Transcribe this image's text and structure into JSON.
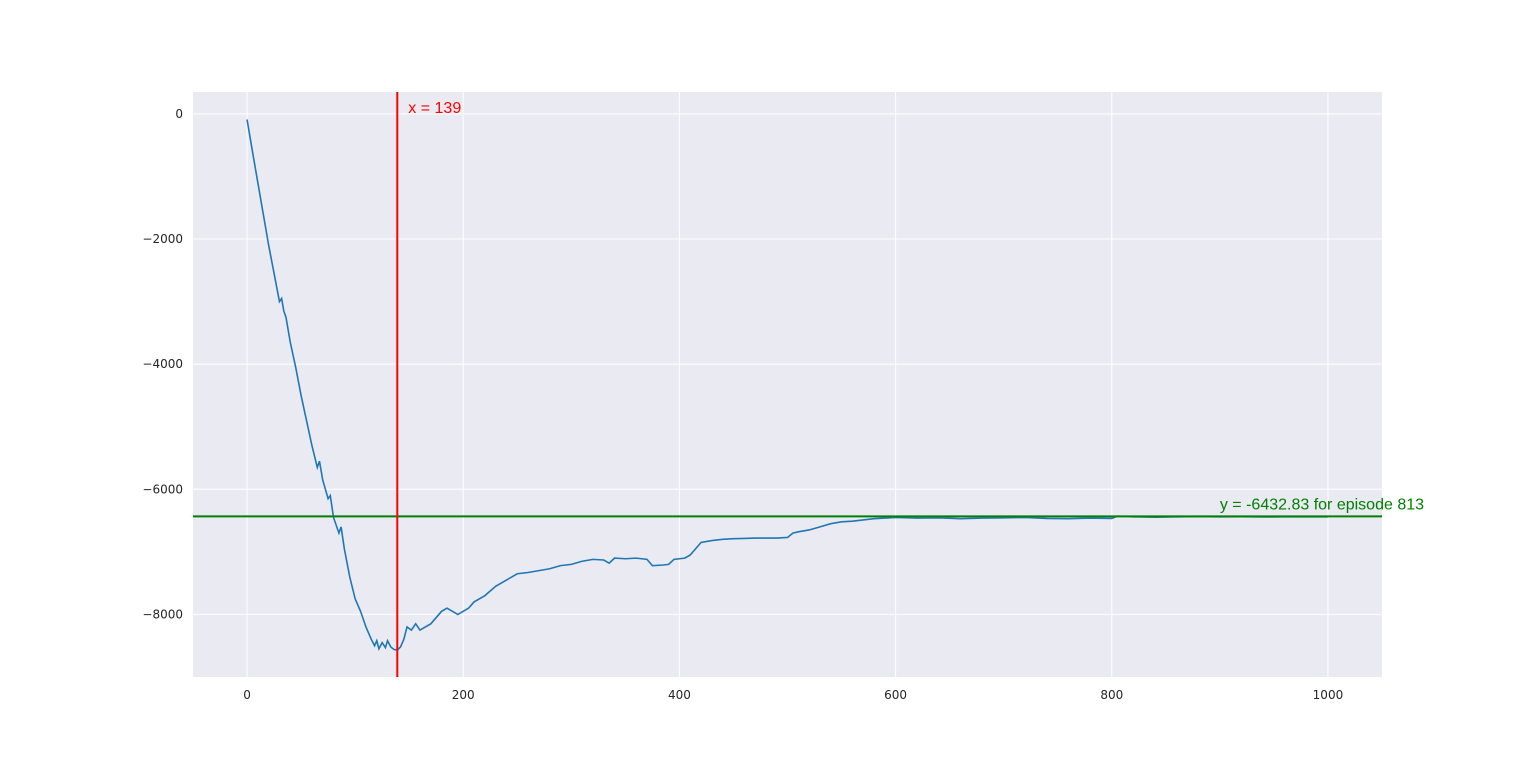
{
  "chart_data": {
    "type": "line",
    "title": "",
    "xlabel": "",
    "ylabel": "",
    "xlim": [
      -50,
      1050
    ],
    "ylim": [
      -9000,
      350
    ],
    "xticks": [
      0,
      200,
      400,
      600,
      800,
      1000
    ],
    "yticks": [
      0,
      -2000,
      -4000,
      -6000,
      -8000
    ],
    "xtick_labels": [
      "0",
      "200",
      "400",
      "600",
      "800",
      "1000"
    ],
    "ytick_labels": [
      "0",
      "−2000",
      "−4000",
      "−6000",
      "−8000"
    ],
    "grid": true,
    "background": "#eaeaf2",
    "series": [
      {
        "color": "#1f77b4",
        "points": [
          [
            0,
            -90
          ],
          [
            5,
            -600
          ],
          [
            10,
            -1100
          ],
          [
            15,
            -1600
          ],
          [
            20,
            -2100
          ],
          [
            25,
            -2550
          ],
          [
            30,
            -3000
          ],
          [
            32,
            -2950
          ],
          [
            34,
            -3150
          ],
          [
            36,
            -3250
          ],
          [
            40,
            -3650
          ],
          [
            45,
            -4050
          ],
          [
            50,
            -4500
          ],
          [
            55,
            -4900
          ],
          [
            60,
            -5300
          ],
          [
            65,
            -5650
          ],
          [
            67,
            -5550
          ],
          [
            70,
            -5850
          ],
          [
            75,
            -6150
          ],
          [
            77,
            -6100
          ],
          [
            80,
            -6450
          ],
          [
            85,
            -6700
          ],
          [
            87,
            -6600
          ],
          [
            90,
            -6950
          ],
          [
            95,
            -7400
          ],
          [
            100,
            -7750
          ],
          [
            105,
            -7950
          ],
          [
            110,
            -8200
          ],
          [
            115,
            -8400
          ],
          [
            118,
            -8500
          ],
          [
            120,
            -8420
          ],
          [
            122,
            -8550
          ],
          [
            125,
            -8450
          ],
          [
            128,
            -8530
          ],
          [
            130,
            -8420
          ],
          [
            133,
            -8520
          ],
          [
            136,
            -8560
          ],
          [
            139,
            -8570
          ],
          [
            142,
            -8520
          ],
          [
            145,
            -8400
          ],
          [
            148,
            -8200
          ],
          [
            152,
            -8250
          ],
          [
            156,
            -8150
          ],
          [
            160,
            -8250
          ],
          [
            165,
            -8200
          ],
          [
            170,
            -8150
          ],
          [
            175,
            -8050
          ],
          [
            180,
            -7950
          ],
          [
            185,
            -7900
          ],
          [
            190,
            -7950
          ],
          [
            195,
            -8000
          ],
          [
            200,
            -7950
          ],
          [
            205,
            -7900
          ],
          [
            210,
            -7800
          ],
          [
            220,
            -7700
          ],
          [
            230,
            -7550
          ],
          [
            240,
            -7450
          ],
          [
            250,
            -7350
          ],
          [
            260,
            -7330
          ],
          [
            270,
            -7300
          ],
          [
            280,
            -7270
          ],
          [
            290,
            -7220
          ],
          [
            300,
            -7200
          ],
          [
            310,
            -7150
          ],
          [
            320,
            -7120
          ],
          [
            330,
            -7130
          ],
          [
            335,
            -7180
          ],
          [
            340,
            -7100
          ],
          [
            350,
            -7110
          ],
          [
            360,
            -7100
          ],
          [
            370,
            -7120
          ],
          [
            375,
            -7220
          ],
          [
            385,
            -7210
          ],
          [
            390,
            -7200
          ],
          [
            395,
            -7120
          ],
          [
            405,
            -7100
          ],
          [
            410,
            -7050
          ],
          [
            415,
            -6950
          ],
          [
            420,
            -6850
          ],
          [
            430,
            -6820
          ],
          [
            440,
            -6800
          ],
          [
            450,
            -6790
          ],
          [
            460,
            -6785
          ],
          [
            470,
            -6780
          ],
          [
            480,
            -6780
          ],
          [
            490,
            -6780
          ],
          [
            500,
            -6770
          ],
          [
            505,
            -6700
          ],
          [
            510,
            -6680
          ],
          [
            520,
            -6650
          ],
          [
            530,
            -6600
          ],
          [
            540,
            -6550
          ],
          [
            550,
            -6520
          ],
          [
            560,
            -6510
          ],
          [
            570,
            -6490
          ],
          [
            580,
            -6470
          ],
          [
            590,
            -6460
          ],
          [
            600,
            -6450
          ],
          [
            620,
            -6460
          ],
          [
            640,
            -6455
          ],
          [
            660,
            -6470
          ],
          [
            680,
            -6460
          ],
          [
            700,
            -6455
          ],
          [
            720,
            -6450
          ],
          [
            740,
            -6465
          ],
          [
            760,
            -6470
          ],
          [
            780,
            -6460
          ],
          [
            800,
            -6465
          ],
          [
            805,
            -6430
          ],
          [
            813,
            -6432.83
          ],
          [
            820,
            -6440
          ],
          [
            840,
            -6445
          ],
          [
            860,
            -6440
          ],
          [
            880,
            -6435
          ],
          [
            900,
            -6440
          ],
          [
            920,
            -6438
          ],
          [
            940,
            -6442
          ],
          [
            960,
            -6440
          ],
          [
            980,
            -6440
          ],
          [
            1000,
            -6440
          ]
        ]
      }
    ],
    "vline": {
      "x": 139,
      "color": "#ff0000",
      "label": "x = 139"
    },
    "hline": {
      "y": -6432.83,
      "color": "#008000",
      "label": "y = -6432.83 for episode 813"
    }
  }
}
